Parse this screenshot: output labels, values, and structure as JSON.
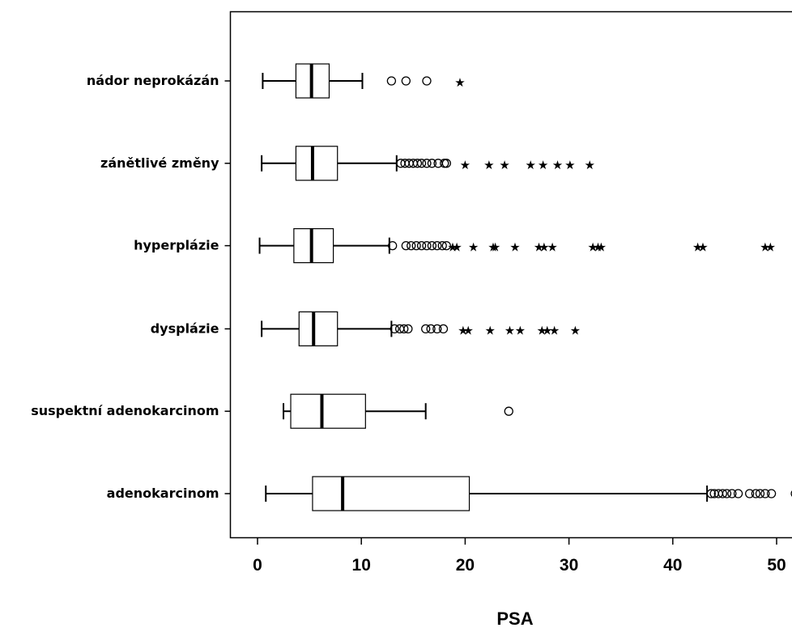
{
  "chart_data": {
    "type": "boxplot",
    "orientation": "horizontal",
    "xlabel": "PSA",
    "ylabel": "",
    "xlim": [
      -2.5,
      52
    ],
    "x_ticks": [
      0,
      10,
      20,
      30,
      40,
      50
    ],
    "grid": false,
    "colors": {
      "box_fill": "#ffffff",
      "stroke": "#000000",
      "background": "#ffffff"
    },
    "categories": [
      "nádor neprokázán",
      "zánětlivé změny",
      "hyperplázie",
      "dysplázie",
      "suspektní adenokarcinom",
      "adenokarcinom"
    ],
    "boxes": [
      {
        "category": "nádor neprokázán",
        "whisker_low": 0.5,
        "q1": 3.7,
        "median": 5.2,
        "q3": 6.9,
        "whisker_high": 10.1,
        "outliers": [
          12.9,
          14.3,
          16.3
        ],
        "extremes": [
          19.5
        ]
      },
      {
        "category": "zánětlivé změny",
        "whisker_low": 0.4,
        "q1": 3.7,
        "median": 5.3,
        "q3": 7.7,
        "whisker_high": 13.4,
        "outliers": [
          13.8,
          14.2,
          14.6,
          15.0,
          15.4,
          15.8,
          16.3,
          16.8,
          17.4,
          18.0,
          18.2
        ],
        "extremes": [
          20.0,
          22.3,
          23.8,
          26.3,
          27.5,
          28.9,
          30.1,
          32.0
        ]
      },
      {
        "category": "hyperplázie",
        "whisker_low": 0.2,
        "q1": 3.5,
        "median": 5.2,
        "q3": 7.3,
        "whisker_high": 12.7,
        "outliers": [
          13.0,
          14.3,
          14.8,
          15.3,
          15.8,
          16.3,
          16.8,
          17.3,
          17.8,
          18.2
        ],
        "extremes": [
          18.8,
          19.2,
          20.8,
          22.7,
          22.9,
          24.8,
          27.1,
          27.6,
          28.4,
          32.3,
          32.8,
          33.1,
          42.4,
          42.9,
          48.9,
          49.4
        ]
      },
      {
        "category": "dysplázie",
        "whisker_low": 0.4,
        "q1": 4.0,
        "median": 5.4,
        "q3": 7.7,
        "whisker_high": 12.9,
        "outliers": [
          13.2,
          13.7,
          14.1,
          14.5,
          16.2,
          16.7,
          17.3,
          17.9
        ],
        "extremes": [
          19.8,
          20.3,
          22.4,
          24.3,
          25.3,
          27.4,
          27.9,
          28.6,
          30.6
        ]
      },
      {
        "category": "suspektní adenokarcinom",
        "whisker_low": 2.5,
        "q1": 3.2,
        "median": 6.2,
        "q3": 10.4,
        "whisker_high": 16.2,
        "outliers": [
          24.2
        ],
        "extremes": []
      },
      {
        "category": "adenokarcinom",
        "whisker_low": 0.8,
        "q1": 5.3,
        "median": 8.2,
        "q3": 20.4,
        "whisker_high": 43.3,
        "outliers": [
          43.7,
          44.0,
          44.4,
          44.8,
          45.2,
          45.7,
          46.3,
          47.4,
          48.0,
          48.4,
          48.9,
          49.5,
          51.8
        ],
        "extremes": []
      }
    ]
  }
}
